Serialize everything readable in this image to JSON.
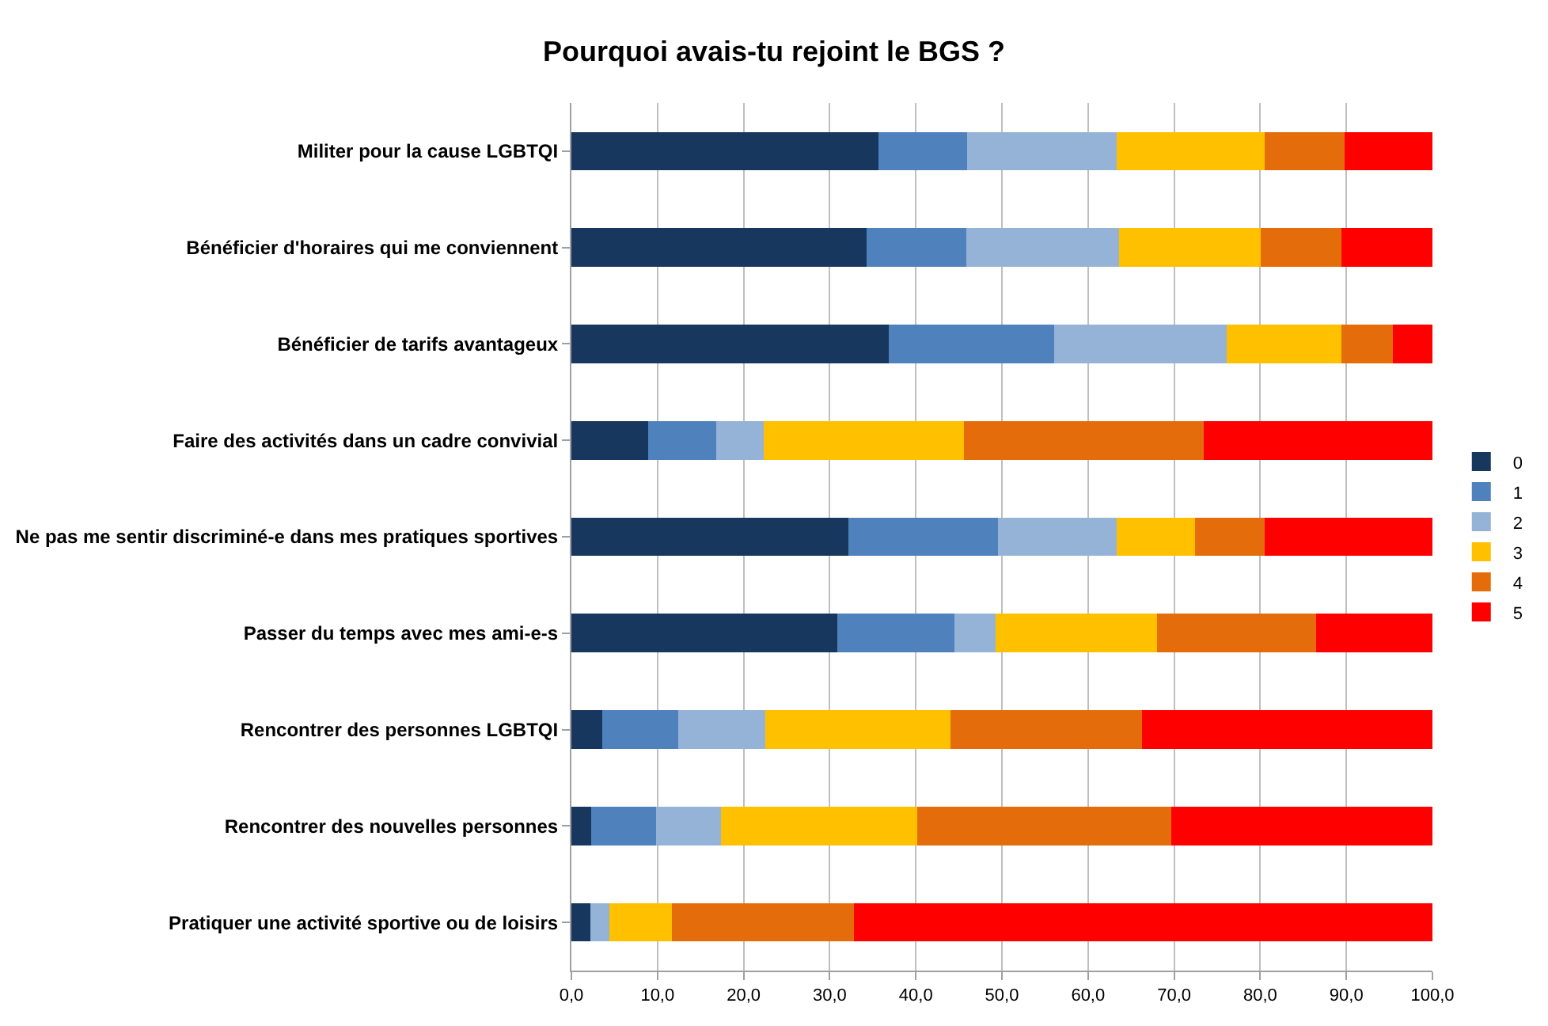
{
  "chart_data": {
    "type": "bar",
    "orientation": "horizontal",
    "stacked": true,
    "title": "Pourquoi avais-tu rejoint le BGS ?",
    "categories": [
      "Militer pour la cause LGBTQI",
      "Bénéficier d'horaires qui me conviennent",
      "Bénéficier de tarifs avantageux",
      "Faire des activités dans un cadre convivial",
      "Ne pas me sentir discriminé-e dans mes pratiques sportives",
      "Passer du temps avec mes ami-e-s",
      "Rencontrer des personnes LGBTQI",
      "Rencontrer des nouvelles personnes",
      "Pratiquer une activité sportive ou de loisirs"
    ],
    "series": [
      {
        "name": "0",
        "color": "#17375e",
        "values": [
          35.7,
          34.3,
          36.9,
          8.9,
          32.2,
          30.9,
          3.6,
          2.3,
          2.2
        ]
      },
      {
        "name": "1",
        "color": "#4f81bd",
        "values": [
          10.3,
          11.6,
          19.2,
          7.9,
          17.3,
          13.6,
          8.8,
          7.5,
          0
        ]
      },
      {
        "name": "2",
        "color": "#95b3d7",
        "values": [
          17.3,
          17.7,
          20.0,
          5.5,
          13.8,
          4.8,
          10.1,
          7.6,
          2.2
        ]
      },
      {
        "name": "3",
        "color": "#ffc000",
        "values": [
          17.2,
          16.5,
          13.3,
          23.3,
          9.1,
          18.7,
          21.5,
          22.8,
          7.3
        ]
      },
      {
        "name": "4",
        "color": "#e46c0a",
        "values": [
          9.3,
          9.3,
          6.0,
          27.8,
          8.1,
          18.5,
          22.3,
          29.5,
          21.1
        ]
      },
      {
        "name": "5",
        "color": "#ff0000",
        "values": [
          10.2,
          10.6,
          4.6,
          26.6,
          19.5,
          13.5,
          33.7,
          30.3,
          67.2
        ]
      }
    ],
    "xlim": [
      0,
      100
    ],
    "xticks": [
      {
        "value": 0,
        "label": "0,0"
      },
      {
        "value": 10,
        "label": "10,0"
      },
      {
        "value": 20,
        "label": "20,0"
      },
      {
        "value": 30,
        "label": "30,0"
      },
      {
        "value": 40,
        "label": "40,0"
      },
      {
        "value": 50,
        "label": "50,0"
      },
      {
        "value": 60,
        "label": "60,0"
      },
      {
        "value": 70,
        "label": "70,0"
      },
      {
        "value": 80,
        "label": "80,0"
      },
      {
        "value": 90,
        "label": "90,0"
      },
      {
        "value": 100,
        "label": "100,0"
      }
    ],
    "grid": "x",
    "legend": "right"
  }
}
